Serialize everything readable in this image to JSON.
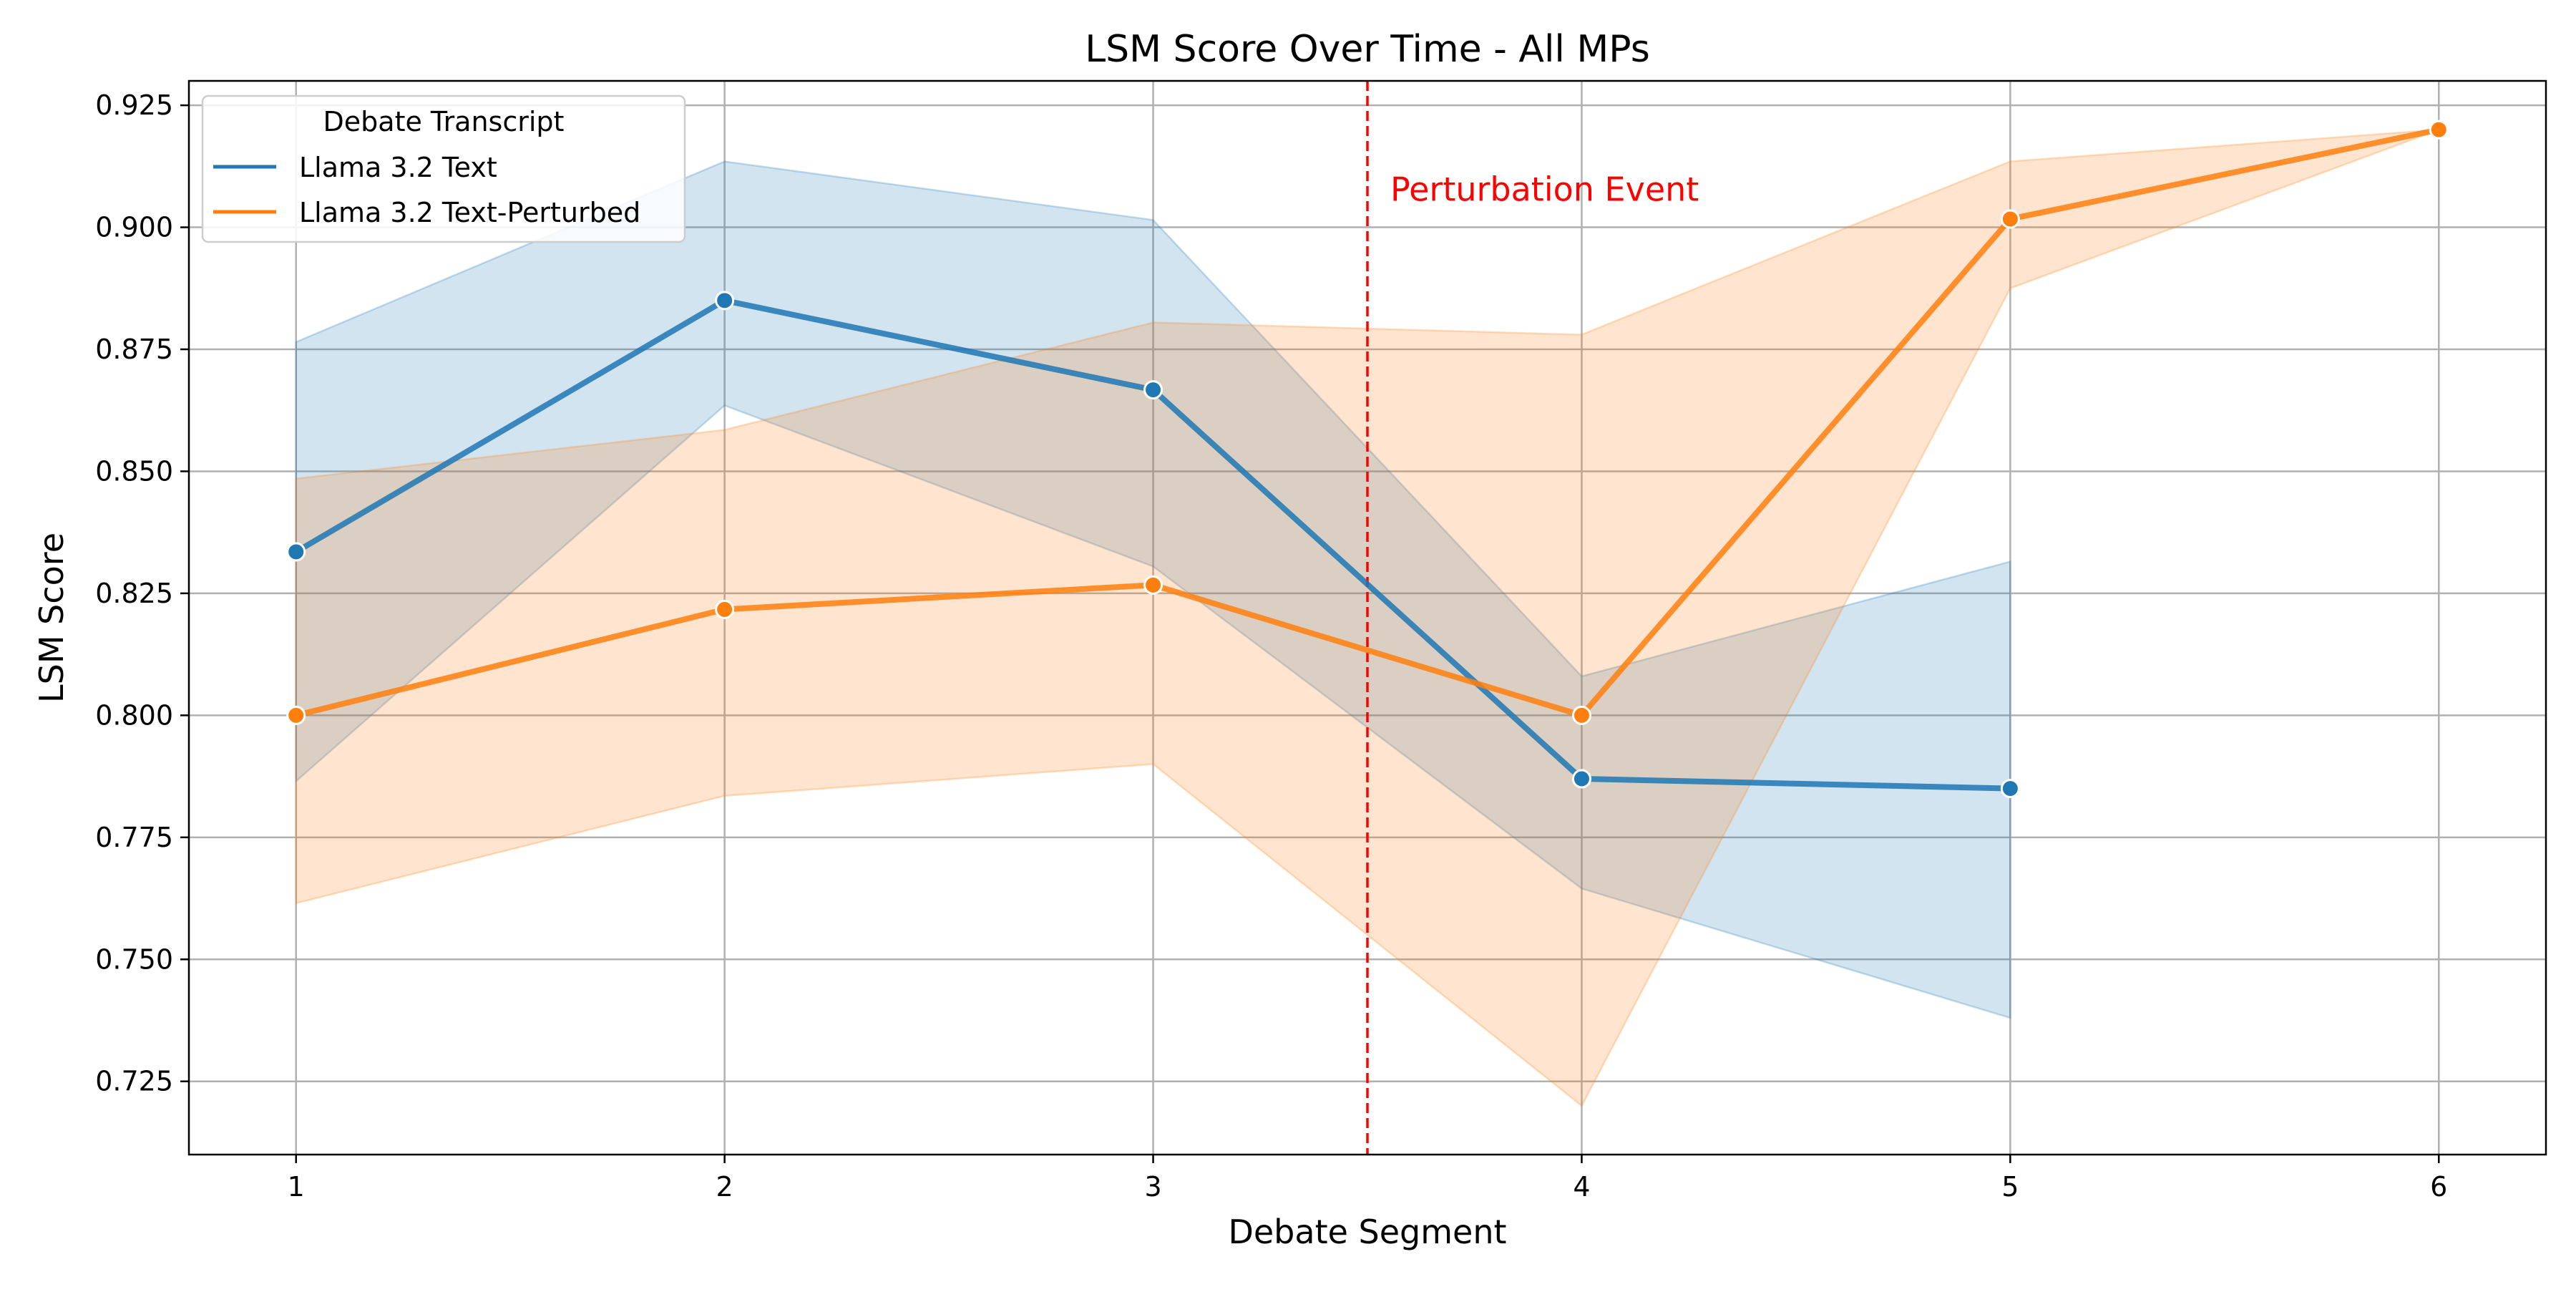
{
  "chart_data": {
    "type": "line",
    "title": "LSM Score Over Time - All MPs",
    "xlabel": "Debate Segment",
    "ylabel": "LSM Score",
    "x_ticks": [
      1,
      2,
      3,
      4,
      5,
      6
    ],
    "y_ticks": [
      0.725,
      0.75,
      0.775,
      0.8,
      0.825,
      0.85,
      0.875,
      0.9,
      0.925
    ],
    "xlim": [
      0.75,
      6.25
    ],
    "ylim": [
      0.71,
      0.93
    ],
    "grid": true,
    "legend": {
      "title": "Debate Transcript",
      "placement": "top-left"
    },
    "series": [
      {
        "name": "Llama 3.2 Text",
        "color": "#1f77b4",
        "x": [
          1,
          2,
          3,
          4,
          5
        ],
        "values": [
          0.8335,
          0.885,
          0.8667,
          0.787,
          0.785
        ],
        "ci_lower": [
          0.7865,
          0.8635,
          0.8305,
          0.7645,
          0.738
        ],
        "ci_upper": [
          0.8765,
          0.9135,
          0.9015,
          0.808,
          0.8315
        ]
      },
      {
        "name": "Llama 3.2 Text-Perturbed",
        "color": "#ff7f0e",
        "x": [
          1,
          2,
          3,
          4,
          5,
          6
        ],
        "values": [
          0.8,
          0.8217,
          0.8267,
          0.8,
          0.9017,
          0.92
        ],
        "ci_lower": [
          0.7615,
          0.7835,
          0.79,
          0.72,
          0.8875,
          0.92
        ],
        "ci_upper": [
          0.8485,
          0.8585,
          0.8805,
          0.878,
          0.9135,
          0.92
        ]
      }
    ],
    "annotations": [
      {
        "type": "vline",
        "x": 3.5,
        "color": "#ff0000",
        "label": "Perturbation Event",
        "label_y": 0.9075
      }
    ]
  }
}
